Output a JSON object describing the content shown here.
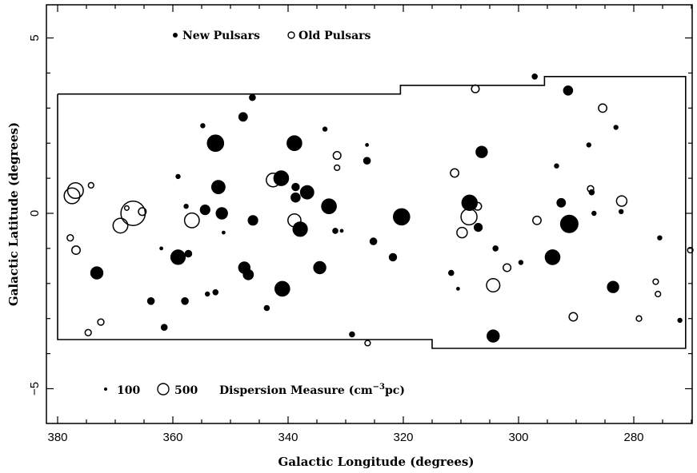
{
  "chart_data": {
    "type": "scatter",
    "xlabel": "Galactic Longitude (degrees)",
    "ylabel": "Galactic Latitude (degrees)",
    "xlim": [
      380,
      270
    ],
    "ylim": [
      -6,
      6
    ],
    "x_reversed": true,
    "x_ticks": [
      380,
      360,
      340,
      320,
      300,
      280
    ],
    "x_tick_labels": [
      "380",
      "360",
      "340",
      "320",
      "300",
      "280"
    ],
    "y_ticks": [
      -5,
      0,
      5
    ],
    "y_tick_labels": [
      "−5",
      "0",
      "5"
    ],
    "grid": false,
    "legend": {
      "placement": "top-left",
      "entries": [
        {
          "symbol": "filled-circle",
          "label": "New Pulsars"
        },
        {
          "symbol": "open-circle",
          "label": "Old Pulsars"
        }
      ]
    },
    "size_legend": {
      "placement": "bottom-left",
      "entries": [
        {
          "dm": 100,
          "label": "100"
        },
        {
          "dm": 500,
          "label": "500"
        }
      ],
      "title_prefix": "Dispersion Measure (cm",
      "title_exp": "−3",
      "title_suffix": "pc)"
    },
    "survey_boundary": [
      [
        380,
        3.4
      ],
      [
        320.5,
        3.4
      ],
      [
        320.5,
        3.65
      ],
      [
        295.5,
        3.65
      ],
      [
        295.5,
        3.9
      ],
      [
        271,
        3.9
      ],
      [
        271,
        -3.85
      ],
      [
        315,
        -3.85
      ],
      [
        315,
        -3.6
      ],
      [
        380,
        -3.6
      ],
      [
        380,
        3.4
      ]
    ],
    "series": [
      {
        "name": "New Pulsars",
        "filled": true,
        "points": [
          {
            "l": 346.2,
            "b": 3.3,
            "dm": 40
          },
          {
            "l": 347.8,
            "b": 2.75,
            "dm": 80
          },
          {
            "l": 354.8,
            "b": 2.5,
            "dm": 20
          },
          {
            "l": 352.6,
            "b": 2.0,
            "dm": 280
          },
          {
            "l": 338.9,
            "b": 2.0,
            "dm": 230
          },
          {
            "l": 333.6,
            "b": 2.4,
            "dm": 20
          },
          {
            "l": 326.3,
            "b": 1.95,
            "dm": 10
          },
          {
            "l": 326.3,
            "b": 1.5,
            "dm": 50
          },
          {
            "l": 306.4,
            "b": 1.75,
            "dm": 140
          },
          {
            "l": 291.4,
            "b": 3.5,
            "dm": 90
          },
          {
            "l": 297.2,
            "b": 3.9,
            "dm": 30
          },
          {
            "l": 283.1,
            "b": 2.45,
            "dm": 20
          },
          {
            "l": 287.8,
            "b": 1.95,
            "dm": 20
          },
          {
            "l": 293.4,
            "b": 1.35,
            "dm": 20
          },
          {
            "l": 359.1,
            "b": 1.05,
            "dm": 20
          },
          {
            "l": 341.2,
            "b": 1.0,
            "dm": 230
          },
          {
            "l": 338.7,
            "b": 0.75,
            "dm": 60
          },
          {
            "l": 338.7,
            "b": 0.45,
            "dm": 90
          },
          {
            "l": 336.7,
            "b": 0.6,
            "dm": 190
          },
          {
            "l": 352.1,
            "b": 0.75,
            "dm": 190
          },
          {
            "l": 357.7,
            "b": 0.2,
            "dm": 20
          },
          {
            "l": 354.4,
            "b": 0.1,
            "dm": 100
          },
          {
            "l": 351.5,
            "b": 0.0,
            "dm": 140
          },
          {
            "l": 346.1,
            "b": -0.2,
            "dm": 100
          },
          {
            "l": 332.9,
            "b": 0.2,
            "dm": 230
          },
          {
            "l": 320.3,
            "b": -0.1,
            "dm": 280
          },
          {
            "l": 308.5,
            "b": 0.3,
            "dm": 250
          },
          {
            "l": 307.0,
            "b": -0.4,
            "dm": 70
          },
          {
            "l": 292.6,
            "b": 0.3,
            "dm": 80
          },
          {
            "l": 287.3,
            "b": 0.6,
            "dm": 30
          },
          {
            "l": 291.2,
            "b": -0.3,
            "dm": 320
          },
          {
            "l": 286.9,
            "b": 0.0,
            "dm": 20
          },
          {
            "l": 282.2,
            "b": 0.05,
            "dm": 20
          },
          {
            "l": 337.9,
            "b": -0.45,
            "dm": 220
          },
          {
            "l": 351.2,
            "b": -0.55,
            "dm": 10
          },
          {
            "l": 331.8,
            "b": -0.5,
            "dm": 30
          },
          {
            "l": 330.7,
            "b": -0.5,
            "dm": 10
          },
          {
            "l": 325.2,
            "b": -0.8,
            "dm": 50
          },
          {
            "l": 321.8,
            "b": -1.25,
            "dm": 60
          },
          {
            "l": 304.0,
            "b": -1.0,
            "dm": 30
          },
          {
            "l": 299.6,
            "b": -1.4,
            "dm": 20
          },
          {
            "l": 362.0,
            "b": -1.0,
            "dm": 10
          },
          {
            "l": 357.3,
            "b": -1.15,
            "dm": 50
          },
          {
            "l": 359.1,
            "b": -1.25,
            "dm": 220
          },
          {
            "l": 294.1,
            "b": -1.25,
            "dm": 230
          },
          {
            "l": 275.5,
            "b": -0.7,
            "dm": 20
          },
          {
            "l": 373.2,
            "b": -1.7,
            "dm": 160
          },
          {
            "l": 347.6,
            "b": -1.55,
            "dm": 140
          },
          {
            "l": 346.9,
            "b": -1.75,
            "dm": 110
          },
          {
            "l": 334.5,
            "b": -1.55,
            "dm": 160
          },
          {
            "l": 311.7,
            "b": -1.7,
            "dm": 30
          },
          {
            "l": 310.5,
            "b": -2.15,
            "dm": 10
          },
          {
            "l": 363.8,
            "b": -2.5,
            "dm": 50
          },
          {
            "l": 357.9,
            "b": -2.5,
            "dm": 50
          },
          {
            "l": 354.0,
            "b": -2.3,
            "dm": 20
          },
          {
            "l": 352.6,
            "b": -2.25,
            "dm": 30
          },
          {
            "l": 343.7,
            "b": -2.7,
            "dm": 30
          },
          {
            "l": 341.0,
            "b": -2.15,
            "dm": 230
          },
          {
            "l": 283.6,
            "b": -2.1,
            "dm": 140
          },
          {
            "l": 361.5,
            "b": -3.25,
            "dm": 40
          },
          {
            "l": 328.9,
            "b": -3.45,
            "dm": 30
          },
          {
            "l": 304.4,
            "b": -3.5,
            "dm": 160
          },
          {
            "l": 272.0,
            "b": -3.05,
            "dm": 20
          }
        ]
      },
      {
        "name": "Old Pulsars",
        "filled": false,
        "points": [
          {
            "l": 376.9,
            "b": 0.65,
            "dm": 250
          },
          {
            "l": 377.5,
            "b": 0.5,
            "dm": 250
          },
          {
            "l": 374.2,
            "b": 0.8,
            "dm": 30
          },
          {
            "l": 366.9,
            "b": 0.0,
            "dm": 600
          },
          {
            "l": 369.1,
            "b": -0.35,
            "dm": 220
          },
          {
            "l": 365.3,
            "b": 0.05,
            "dm": 60
          },
          {
            "l": 368.0,
            "b": 0.15,
            "dm": 20
          },
          {
            "l": 356.7,
            "b": -0.2,
            "dm": 220
          },
          {
            "l": 377.8,
            "b": -0.7,
            "dm": 40
          },
          {
            "l": 376.8,
            "b": -1.05,
            "dm": 70
          },
          {
            "l": 372.5,
            "b": -3.1,
            "dm": 40
          },
          {
            "l": 374.7,
            "b": -3.4,
            "dm": 40
          },
          {
            "l": 342.6,
            "b": 0.95,
            "dm": 190
          },
          {
            "l": 338.9,
            "b": -0.2,
            "dm": 170
          },
          {
            "l": 331.5,
            "b": 1.65,
            "dm": 60
          },
          {
            "l": 331.5,
            "b": 1.3,
            "dm": 30
          },
          {
            "l": 326.2,
            "b": -3.7,
            "dm": 30
          },
          {
            "l": 307.5,
            "b": 3.55,
            "dm": 60
          },
          {
            "l": 311.1,
            "b": 1.15,
            "dm": 70
          },
          {
            "l": 308.6,
            "b": -0.1,
            "dm": 260
          },
          {
            "l": 307.1,
            "b": 0.2,
            "dm": 60
          },
          {
            "l": 309.8,
            "b": -0.55,
            "dm": 110
          },
          {
            "l": 302.0,
            "b": -1.55,
            "dm": 60
          },
          {
            "l": 304.4,
            "b": -2.05,
            "dm": 180
          },
          {
            "l": 290.5,
            "b": -2.95,
            "dm": 70
          },
          {
            "l": 285.4,
            "b": 3.0,
            "dm": 70
          },
          {
            "l": 287.5,
            "b": 0.7,
            "dm": 40
          },
          {
            "l": 296.8,
            "b": -0.2,
            "dm": 70
          },
          {
            "l": 282.1,
            "b": 0.35,
            "dm": 110
          },
          {
            "l": 276.2,
            "b": -1.95,
            "dm": 30
          },
          {
            "l": 275.8,
            "b": -2.3,
            "dm": 30
          },
          {
            "l": 279.1,
            "b": -3.0,
            "dm": 30
          },
          {
            "l": 270.2,
            "b": -1.05,
            "dm": 30
          }
        ]
      }
    ]
  }
}
